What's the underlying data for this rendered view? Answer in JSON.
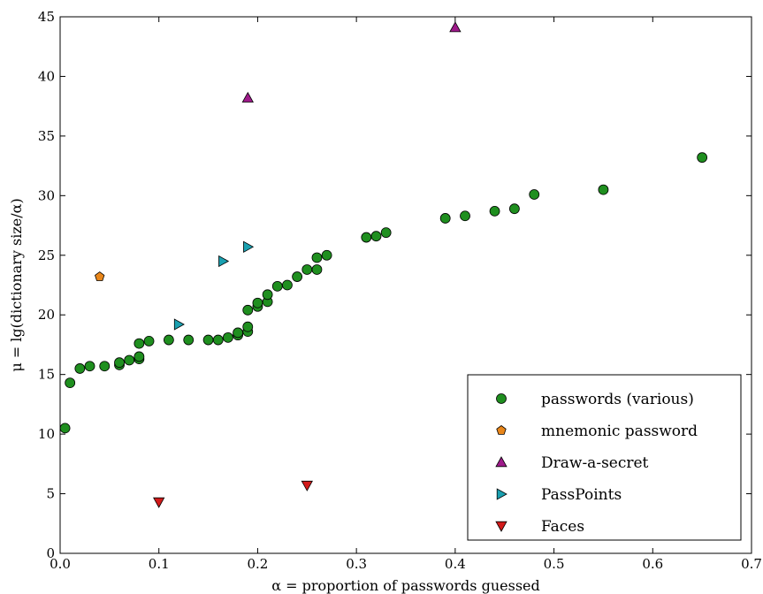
{
  "chart_data": {
    "type": "scatter",
    "title": "",
    "xlabel": "α = proportion of passwords guessed",
    "ylabel": "μ = lg(dictionary size/α)",
    "xlim": [
      0.0,
      0.7
    ],
    "ylim": [
      0,
      45
    ],
    "xticks": [
      0.0,
      0.1,
      0.2,
      0.3,
      0.4,
      0.5,
      0.6,
      0.7
    ],
    "xtick_labels": [
      "0.0",
      "0.1",
      "0.2",
      "0.3",
      "0.4",
      "0.5",
      "0.6",
      "0.7"
    ],
    "yticks": [
      0,
      5,
      10,
      15,
      20,
      25,
      30,
      35,
      40,
      45
    ],
    "ytick_labels": [
      "0",
      "5",
      "10",
      "15",
      "20",
      "25",
      "30",
      "35",
      "40",
      "45"
    ],
    "grid": false,
    "legend_position": "bottom-right",
    "series": [
      {
        "name": "passwords (various)",
        "marker": "circle",
        "color": "#1f8f1f",
        "points": [
          [
            0.005,
            10.5
          ],
          [
            0.01,
            14.3
          ],
          [
            0.02,
            15.5
          ],
          [
            0.03,
            15.7
          ],
          [
            0.045,
            15.7
          ],
          [
            0.06,
            15.8
          ],
          [
            0.06,
            16.0
          ],
          [
            0.07,
            16.2
          ],
          [
            0.08,
            16.3
          ],
          [
            0.08,
            16.5
          ],
          [
            0.08,
            17.6
          ],
          [
            0.09,
            17.8
          ],
          [
            0.11,
            17.9
          ],
          [
            0.13,
            17.9
          ],
          [
            0.15,
            17.9
          ],
          [
            0.16,
            17.9
          ],
          [
            0.17,
            18.1
          ],
          [
            0.18,
            18.3
          ],
          [
            0.18,
            18.5
          ],
          [
            0.19,
            18.6
          ],
          [
            0.19,
            19.0
          ],
          [
            0.19,
            20.4
          ],
          [
            0.2,
            20.7
          ],
          [
            0.2,
            21.0
          ],
          [
            0.21,
            21.1
          ],
          [
            0.21,
            21.7
          ],
          [
            0.22,
            22.4
          ],
          [
            0.23,
            22.5
          ],
          [
            0.24,
            23.2
          ],
          [
            0.25,
            23.8
          ],
          [
            0.26,
            23.8
          ],
          [
            0.26,
            24.8
          ],
          [
            0.27,
            25.0
          ],
          [
            0.31,
            26.5
          ],
          [
            0.32,
            26.6
          ],
          [
            0.33,
            26.9
          ],
          [
            0.39,
            28.1
          ],
          [
            0.41,
            28.3
          ],
          [
            0.44,
            28.7
          ],
          [
            0.46,
            28.9
          ],
          [
            0.48,
            30.1
          ],
          [
            0.55,
            30.5
          ],
          [
            0.65,
            33.2
          ]
        ]
      },
      {
        "name": "mnemonic password",
        "marker": "pentagon",
        "color": "#e8861a",
        "points": [
          [
            0.04,
            23.2
          ]
        ]
      },
      {
        "name": "Draw-a-secret",
        "marker": "triangle-up",
        "color": "#9e1a8a",
        "points": [
          [
            0.19,
            38.2
          ],
          [
            0.4,
            44.1
          ]
        ]
      },
      {
        "name": "PassPoints",
        "marker": "triangle-right",
        "color": "#1aa0b0",
        "points": [
          [
            0.12,
            19.2
          ],
          [
            0.165,
            24.5
          ],
          [
            0.19,
            25.7
          ]
        ]
      },
      {
        "name": "Faces",
        "marker": "triangle-down",
        "color": "#d21a1a",
        "points": [
          [
            0.1,
            4.3
          ],
          [
            0.25,
            5.7
          ]
        ]
      }
    ]
  }
}
